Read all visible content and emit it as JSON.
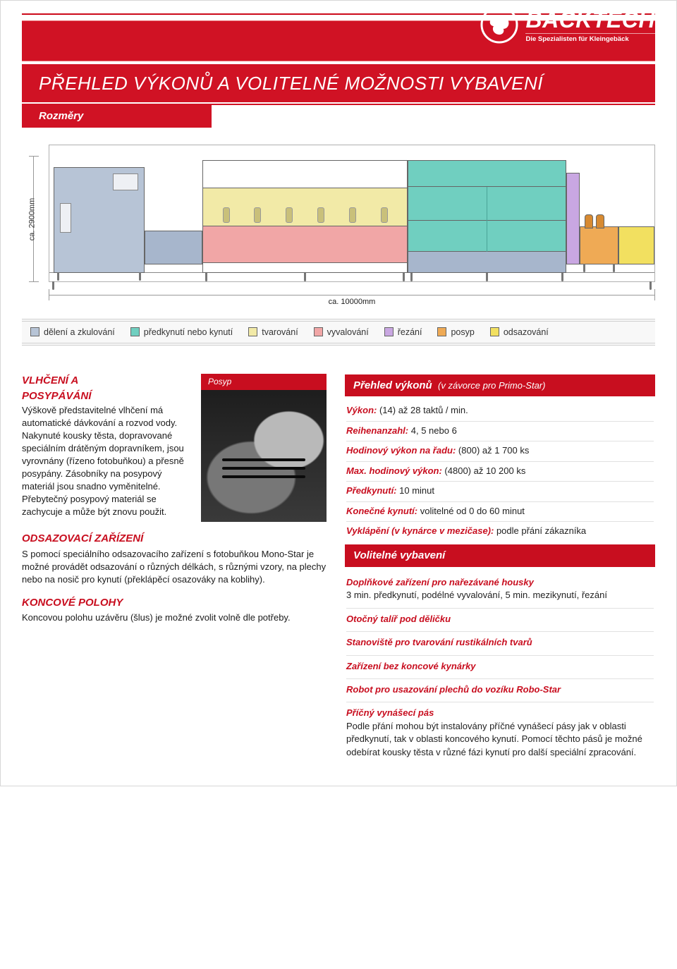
{
  "brand": {
    "name": "BACKTECH",
    "tagline": "Die Spezialisten für Kleingebäck"
  },
  "header": {
    "title": "PŘEHLED VÝKONŮ A VOLITELNÉ MOŽNOSTI VYBAVENÍ",
    "subtitle": "Rozměry"
  },
  "dimensions": {
    "height": "ca. 2900mm",
    "length": "ca. 10000mm"
  },
  "legend": {
    "items": [
      {
        "label": "dělení a zkulování",
        "color": "#b7c4d6"
      },
      {
        "label": "předkynutí nebo kynutí",
        "color": "#70cfc0"
      },
      {
        "label": "tvarování",
        "color": "#f2eaa7"
      },
      {
        "label": "vyvalování",
        "color": "#f1a6a6"
      },
      {
        "label": "řezání",
        "color": "#c9a7e2"
      },
      {
        "label": "posyp",
        "color": "#efaa55"
      },
      {
        "label": "odsazování",
        "color": "#f2e060"
      }
    ]
  },
  "left": {
    "section1_title1": "VLHČENÍ A",
    "section1_title2": "POSYPÁVÁNÍ",
    "section1_body": "Výškově představitelné vlhčení má automatické dávkování a rozvod vody. Nakynuté kousky těsta, dopravované speciálním drátěným dopravníkem, jsou vyrovnány (řízeno fotobuňkou) a přesně posypány. Zásobníky na posypový materiál jsou snadno vyměnitelné. Přebytečný posypový materiál se zachycuje a může být znovu použit.",
    "posyp_caption": "Posyp",
    "section2_title": "ODSAZOVACÍ ZAŘÍZENÍ",
    "section2_body": "S pomocí speciálního odsazovacího zařízení s fotobuňkou Mono-Star je možné provádět odsazování o různých délkách, s různými vzory, na plechy nebo na nosič pro kynutí (překlápěcí osazováky na koblihy).",
    "section3_title": "KONCOVÉ POLOHY",
    "section3_body": "Koncovou polohu uzávěru (šlus) je možné zvolit volně dle potřeby."
  },
  "right": {
    "overview_title": "Přehled výkonů",
    "overview_note": "(v závorce pro Primo-Star)",
    "specs": [
      {
        "k": "Výkon:",
        "v": "(14) až 28 taktů / min."
      },
      {
        "k": "Reihenanzahl:",
        "v": "4, 5 nebo 6"
      },
      {
        "k": "Hodinový výkon na řadu:",
        "v": "(800) až 1 700 ks"
      },
      {
        "k": "Max. hodinový výkon:",
        "v": "(4800) až 10 200 ks"
      },
      {
        "k": "Předkynutí:",
        "v": "10 minut"
      },
      {
        "k": "Konečné kynutí:",
        "v": "volitelné od 0 do 60 minut"
      },
      {
        "k": "Vyklápění (v kynárce v mezičase):",
        "v": "podle přání zákazníka"
      }
    ],
    "options_title": "Volitelné vybavení",
    "options": [
      {
        "t": "Doplňkové zařízení pro nařezávané housky",
        "d": "3 min. předkynutí, podélné vyvalování, 5 min. mezikynutí, řezání"
      },
      {
        "t": "Otočný talíř pod děličku",
        "d": ""
      },
      {
        "t": "Stanoviště pro tvarování rustikálních tvarů",
        "d": ""
      },
      {
        "t": "Zařízení bez koncové kynárky",
        "d": ""
      },
      {
        "t": "Robot pro usazování plechů do vozíku Robo-Star",
        "d": ""
      },
      {
        "t": "Příčný vynášecí pás",
        "d": "Podle přání mohou být instalovány příčné vynášecí pásy jak v oblasti předkynutí, tak v oblasti koncového kynutí. Pomocí těchto pásů je možné odebírat kousky těsta v různé fázi kynutí pro další speciální zpracování."
      }
    ]
  },
  "colors": {
    "brand_red": "#d01224",
    "accent_red": "#c80e1f"
  }
}
